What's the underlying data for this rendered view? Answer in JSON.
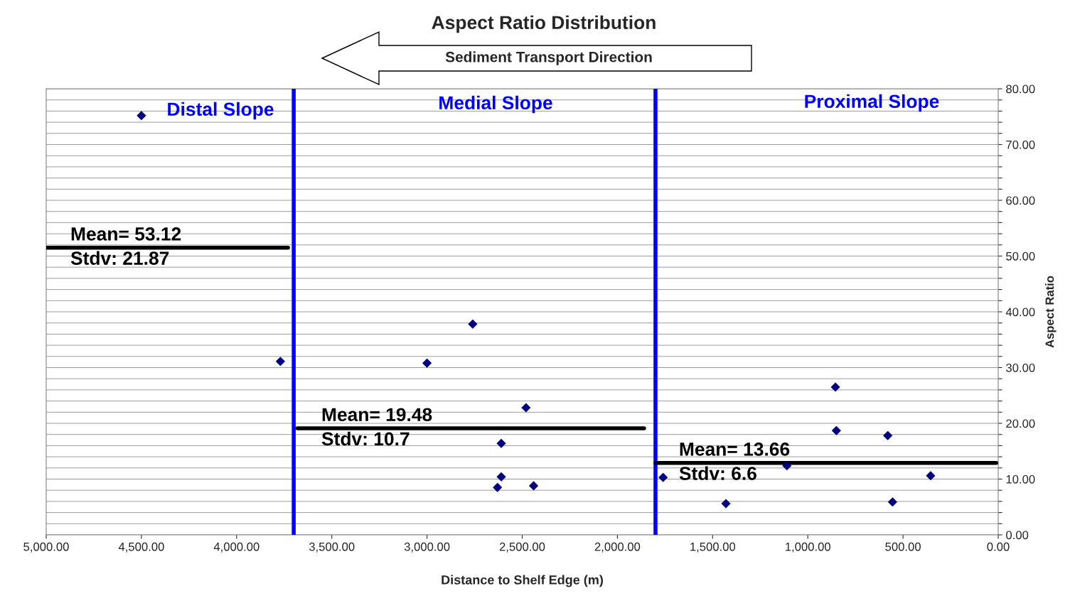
{
  "chart_data": {
    "type": "scatter",
    "title": "Aspect Ratio Distribution",
    "xlabel": "Distance to Shelf Edge (m)",
    "ylabel": "Aspect Ratio",
    "xlim": [
      5000,
      0
    ],
    "ylim": [
      0,
      80
    ],
    "xticks": [
      {
        "value": 5000,
        "label": "5,000.00"
      },
      {
        "value": 4500,
        "label": "4,500.00"
      },
      {
        "value": 4000,
        "label": "4,000.00"
      },
      {
        "value": 3500,
        "label": "3,500.00"
      },
      {
        "value": 3000,
        "label": "3,000.00"
      },
      {
        "value": 2500,
        "label": "2,500.00"
      },
      {
        "value": 2000,
        "label": "2,000.00"
      },
      {
        "value": 1500,
        "label": "1,500.00"
      },
      {
        "value": 1000,
        "label": "1,000.00"
      },
      {
        "value": 500,
        "label": "500.00"
      },
      {
        "value": 0,
        "label": "0.00"
      }
    ],
    "yticks": [
      {
        "value": 0,
        "label": "0.00"
      },
      {
        "value": 2,
        "label": null
      },
      {
        "value": 4,
        "label": null
      },
      {
        "value": 6,
        "label": null
      },
      {
        "value": 8,
        "label": null
      },
      {
        "value": 10,
        "label": "10.00"
      },
      {
        "value": 12,
        "label": null
      },
      {
        "value": 14,
        "label": null
      },
      {
        "value": 16,
        "label": null
      },
      {
        "value": 18,
        "label": null
      },
      {
        "value": 20,
        "label": "20.00"
      },
      {
        "value": 22,
        "label": null
      },
      {
        "value": 24,
        "label": null
      },
      {
        "value": 26,
        "label": null
      },
      {
        "value": 28,
        "label": null
      },
      {
        "value": 30,
        "label": "30.00"
      },
      {
        "value": 32,
        "label": null
      },
      {
        "value": 34,
        "label": null
      },
      {
        "value": 36,
        "label": null
      },
      {
        "value": 38,
        "label": null
      },
      {
        "value": 40,
        "label": "40.00"
      },
      {
        "value": 42,
        "label": null
      },
      {
        "value": 44,
        "label": null
      },
      {
        "value": 46,
        "label": null
      },
      {
        "value": 48,
        "label": null
      },
      {
        "value": 50,
        "label": "50.00"
      },
      {
        "value": 52,
        "label": null
      },
      {
        "value": 54,
        "label": null
      },
      {
        "value": 56,
        "label": null
      },
      {
        "value": 58,
        "label": null
      },
      {
        "value": 60,
        "label": "60.00"
      },
      {
        "value": 62,
        "label": null
      },
      {
        "value": 64,
        "label": null
      },
      {
        "value": 66,
        "label": null
      },
      {
        "value": 68,
        "label": null
      },
      {
        "value": 70,
        "label": "70.00"
      },
      {
        "value": 72,
        "label": null
      },
      {
        "value": 74,
        "label": null
      },
      {
        "value": 76,
        "label": null
      },
      {
        "value": 78,
        "label": null
      },
      {
        "value": 80,
        "label": "80.00"
      }
    ],
    "grid": "y",
    "series": [
      {
        "marker": "diamond",
        "color": "#000080",
        "x": [
          4500,
          3770,
          3000,
          2760,
          2480,
          2610,
          2610,
          2630,
          2440,
          1760,
          1430,
          1110,
          855,
          850,
          580,
          555,
          355
        ],
        "values": [
          75.2,
          31.1,
          30.8,
          37.8,
          22.8,
          16.4,
          10.4,
          8.5,
          8.8,
          10.3,
          5.6,
          12.4,
          26.5,
          18.7,
          17.8,
          5.9,
          10.6
        ]
      },
      {
        "type": "line",
        "color": "#000000",
        "x": [
          5000,
          3730
        ],
        "values": [
          51.5,
          51.5
        ]
      },
      {
        "type": "line",
        "color": "#000000",
        "x": [
          3680,
          1860
        ],
        "values": [
          19.1,
          19.1
        ]
      },
      {
        "type": "line",
        "color": "#000000",
        "x": [
          1800,
          10
        ],
        "values": [
          12.9,
          12.9
        ]
      }
    ],
    "ref_lines": [
      {
        "axis": "x",
        "value": 3700,
        "color": "#0000ff"
      },
      {
        "axis": "x",
        "value": 1800,
        "color": "#0000ff"
      }
    ],
    "annotations": [
      "Distal Slope",
      "Medial Slope",
      "Proximal Slope",
      {
        "text": "Mean= 53.12\nStdv: 21.87",
        "x": 4873,
        "y": 51.5
      },
      {
        "text": "Mean= 19.48\nStdv: 10.7",
        "x": 3555,
        "y": 19.1
      },
      {
        "text": "Mean= 13.66\nStdv: 6.6",
        "x": 1677,
        "y": 12.9
      },
      "Sediment Transport Direction"
    ]
  }
}
